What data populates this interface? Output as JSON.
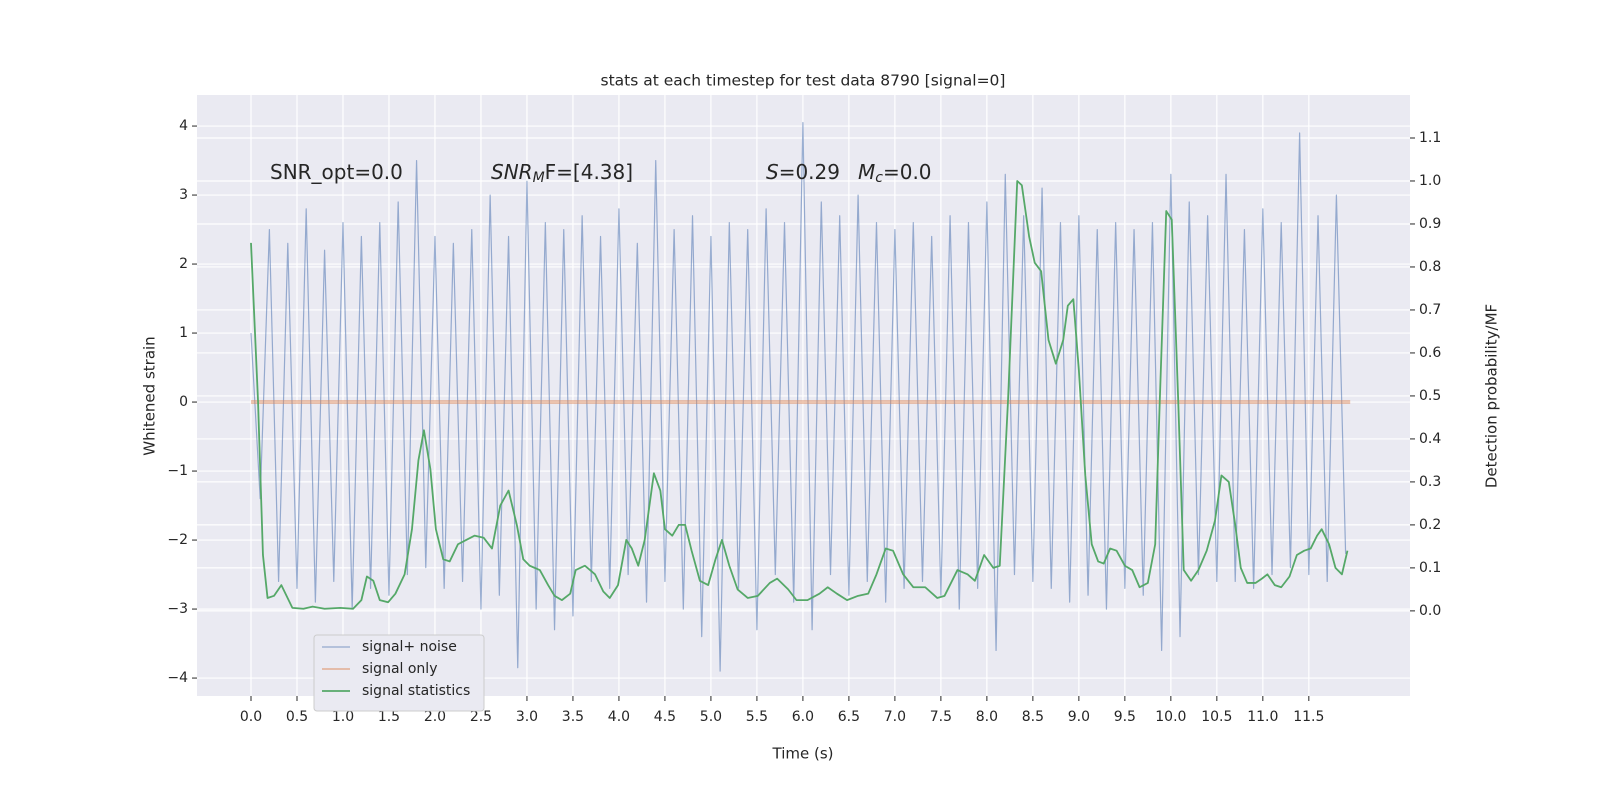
{
  "chart_data": {
    "type": "line",
    "title": "stats at each timestep for test data 8790 [signal=0]",
    "xlabel": "Time (s)",
    "ylabel": "Whitened strain",
    "y2label": "Detection probability/MF",
    "xlim": [
      -0.587,
      12.6
    ],
    "ylim": [
      -4.26,
      4.45
    ],
    "y2lim": [
      -0.198,
      1.2
    ],
    "xticks": [
      {
        "value": 0,
        "label": "0.0"
      },
      {
        "value": 0.5,
        "label": "0.5"
      },
      {
        "value": 1,
        "label": "1.0"
      },
      {
        "value": 1.5,
        "label": "1.5"
      },
      {
        "value": 2,
        "label": "2.0"
      },
      {
        "value": 2.5,
        "label": "2.5"
      },
      {
        "value": 3,
        "label": "3.0"
      },
      {
        "value": 3.5,
        "label": "3.5"
      },
      {
        "value": 4,
        "label": "4.0"
      },
      {
        "value": 4.5,
        "label": "4.5"
      },
      {
        "value": 5,
        "label": "5.0"
      },
      {
        "value": 5.5,
        "label": "5.5"
      },
      {
        "value": 6,
        "label": "6.0"
      },
      {
        "value": 6.5,
        "label": "6.5"
      },
      {
        "value": 7,
        "label": "7.0"
      },
      {
        "value": 7.5,
        "label": "7.5"
      },
      {
        "value": 8,
        "label": "8.0"
      },
      {
        "value": 8.5,
        "label": "8.5"
      },
      {
        "value": 9,
        "label": "9.0"
      },
      {
        "value": 9.5,
        "label": "9.5"
      },
      {
        "value": 10,
        "label": "10.0"
      },
      {
        "value": 10.5,
        "label": "10.5"
      },
      {
        "value": 11,
        "label": "11.0"
      },
      {
        "value": 11.5,
        "label": "11.5"
      }
    ],
    "yticks": [
      {
        "value": -4,
        "label": "−4"
      },
      {
        "value": -3,
        "label": "−3"
      },
      {
        "value": -2,
        "label": "−2"
      },
      {
        "value": -1,
        "label": "−1"
      },
      0,
      1,
      2,
      3,
      4
    ],
    "y2ticks": [
      {
        "value": 0,
        "label": "0.0"
      },
      {
        "value": 0.1,
        "label": "0.1"
      },
      {
        "value": 0.2,
        "label": "0.2"
      },
      {
        "value": 0.3,
        "label": "0.3"
      },
      {
        "value": 0.4,
        "label": "0.4"
      },
      {
        "value": 0.5,
        "label": "0.5"
      },
      {
        "value": 0.6,
        "label": "0.6"
      },
      {
        "value": 0.7,
        "label": "0.7"
      },
      {
        "value": 0.8,
        "label": "0.8"
      },
      {
        "value": 0.9,
        "label": "0.9"
      },
      {
        "value": 1.0,
        "label": "1.0"
      },
      {
        "value": 1.1,
        "label": "1.1"
      }
    ],
    "grid": true,
    "legend": "lower left",
    "annotations": [
      {
        "text": "SNR_opt=0.0"
      },
      {
        "italic": "SNR",
        "sub": "M",
        "text": "F=[4.38]"
      },
      {
        "italic": "S",
        "text": "=0.29"
      },
      {
        "italic": "M",
        "sub": "c",
        "text": "=0.0"
      }
    ],
    "series": [
      {
        "name": "signal+ noise",
        "color": "#4c72b0",
        "x": [
          0,
          0.1,
          0.2,
          0.3,
          0.4,
          0.5,
          0.6,
          0.7,
          0.8,
          0.9,
          1,
          1.1,
          1.2,
          1.3,
          1.4,
          1.5,
          1.6,
          1.7,
          1.8,
          1.9,
          2,
          2.1,
          2.2,
          2.3,
          2.4,
          2.5,
          2.6,
          2.7,
          2.8,
          2.9,
          3,
          3.1,
          3.2,
          3.3,
          3.4,
          3.5,
          3.6,
          3.7,
          3.8,
          3.9,
          4,
          4.1,
          4.2,
          4.3,
          4.4,
          4.5,
          4.6,
          4.7,
          4.8,
          4.9,
          5,
          5.1,
          5.2,
          5.3,
          5.4,
          5.5,
          5.6,
          5.7,
          5.8,
          5.9,
          6,
          6.1,
          6.2,
          6.3,
          6.4,
          6.5,
          6.6,
          6.7,
          6.8,
          6.9,
          7,
          7.1,
          7.2,
          7.3,
          7.4,
          7.5,
          7.6,
          7.7,
          7.8,
          7.9,
          8,
          8.1,
          8.2,
          8.3,
          8.4,
          8.5,
          8.6,
          8.7,
          8.8,
          8.9,
          9,
          9.1,
          9.2,
          9.3,
          9.4,
          9.5,
          9.6,
          9.7,
          9.8,
          9.9,
          10,
          10.1,
          10.2,
          10.3,
          10.4,
          10.5,
          10.6,
          10.7,
          10.8,
          10.9,
          11,
          11.1,
          11.2,
          11.3,
          11.4,
          11.5,
          11.6,
          11.7,
          11.8,
          11.9
        ],
        "values": [
          1.0,
          -1.4,
          2.5,
          -2.6,
          2.3,
          -2.7,
          2.8,
          -2.9,
          2.2,
          -2.6,
          2.6,
          -3.0,
          2.4,
          -2.7,
          2.6,
          -2.8,
          2.9,
          -2.5,
          3.5,
          -2.4,
          2.4,
          -2.7,
          2.3,
          -2.6,
          2.5,
          -3.0,
          3.0,
          -2.8,
          2.4,
          -3.85,
          3.2,
          -3.0,
          2.6,
          -3.3,
          2.5,
          -3.1,
          2.7,
          -2.6,
          2.4,
          -2.7,
          2.8,
          -2.5,
          2.3,
          -2.9,
          3.5,
          -2.6,
          2.5,
          -3.0,
          2.7,
          -3.4,
          2.4,
          -3.9,
          2.6,
          -2.7,
          2.5,
          -3.3,
          2.8,
          -2.5,
          2.6,
          -2.9,
          4.05,
          -3.3,
          2.9,
          -2.5,
          2.7,
          -2.8,
          3.0,
          -2.6,
          2.6,
          -2.9,
          2.5,
          -2.7,
          2.6,
          -2.6,
          2.4,
          -2.8,
          2.7,
          -3.0,
          2.6,
          -2.7,
          2.9,
          -3.6,
          3.3,
          -2.5,
          2.7,
          -2.6,
          3.1,
          -2.7,
          2.6,
          -2.9,
          2.7,
          -2.8,
          2.5,
          -3.0,
          2.6,
          -2.7,
          2.5,
          -2.8,
          2.6,
          -3.6,
          3.3,
          -3.4,
          2.9,
          -2.5,
          2.7,
          -2.6,
          3.3,
          -2.6,
          2.5,
          -2.7,
          2.8,
          -2.5,
          2.6,
          -2.4,
          3.9,
          -2.5,
          2.7,
          -2.6,
          3.0,
          -2.2
        ]
      },
      {
        "name": "signal only",
        "color": "#dd8452",
        "x": [
          0,
          11.95
        ],
        "values": [
          0,
          0
        ]
      },
      {
        "name": "signal statistics",
        "color": "#55a868",
        "axis": "y2",
        "x": [
          0,
          0.076,
          0.13,
          0.18,
          0.25,
          0.33,
          0.45,
          0.57,
          0.67,
          0.8,
          0.97,
          1.11,
          1.2,
          1.26,
          1.33,
          1.4,
          1.49,
          1.57,
          1.67,
          1.75,
          1.82,
          1.88,
          1.95,
          2.01,
          2.09,
          2.16,
          2.25,
          2.34,
          2.43,
          2.53,
          2.62,
          2.71,
          2.8,
          2.89,
          2.96,
          3.03,
          3.14,
          3.23,
          3.3,
          3.38,
          3.47,
          3.53,
          3.63,
          3.74,
          3.83,
          3.9,
          3.99,
          4.08,
          4.14,
          4.21,
          4.28,
          4.38,
          4.45,
          4.5,
          4.58,
          4.65,
          4.72,
          4.79,
          4.88,
          4.97,
          5.05,
          5.12,
          5.2,
          5.29,
          5.4,
          5.51,
          5.64,
          5.72,
          5.84,
          5.93,
          6.05,
          6.18,
          6.27,
          6.37,
          6.48,
          6.6,
          6.71,
          6.8,
          6.9,
          6.98,
          7.09,
          7.2,
          7.33,
          7.46,
          7.54,
          7.68,
          7.79,
          7.87,
          7.97,
          8.07,
          8.14,
          8.23,
          8.33,
          8.38,
          8.46,
          8.52,
          8.59,
          8.67,
          8.75,
          8.83,
          8.88,
          8.94,
          9.0,
          9.07,
          9.14,
          9.21,
          9.27,
          9.34,
          9.41,
          9.5,
          9.58,
          9.66,
          9.75,
          9.83,
          9.88,
          9.95,
          10.01,
          10.08,
          10.14,
          10.22,
          10.3,
          10.39,
          10.48,
          10.55,
          10.63,
          10.7,
          10.76,
          10.83,
          10.92,
          10.99,
          11.05,
          11.13,
          11.2,
          11.29,
          11.37,
          11.45,
          11.52,
          11.59,
          11.64,
          11.72,
          11.79,
          11.86,
          11.92
        ],
        "values": [
          0.856,
          0.49,
          0.13,
          0.03,
          0.035,
          0.06,
          0.007,
          0.005,
          0.01,
          0.005,
          0.007,
          0.005,
          0.025,
          0.08,
          0.07,
          0.025,
          0.02,
          0.04,
          0.085,
          0.19,
          0.35,
          0.42,
          0.33,
          0.19,
          0.12,
          0.115,
          0.155,
          0.165,
          0.175,
          0.17,
          0.145,
          0.245,
          0.28,
          0.2,
          0.12,
          0.105,
          0.095,
          0.06,
          0.035,
          0.025,
          0.04,
          0.095,
          0.105,
          0.085,
          0.045,
          0.03,
          0.06,
          0.165,
          0.145,
          0.105,
          0.165,
          0.32,
          0.28,
          0.19,
          0.175,
          0.2,
          0.2,
          0.14,
          0.07,
          0.06,
          0.12,
          0.165,
          0.105,
          0.05,
          0.03,
          0.035,
          0.065,
          0.075,
          0.05,
          0.025,
          0.025,
          0.04,
          0.055,
          0.04,
          0.025,
          0.035,
          0.04,
          0.085,
          0.145,
          0.14,
          0.085,
          0.055,
          0.055,
          0.03,
          0.035,
          0.095,
          0.085,
          0.07,
          0.13,
          0.1,
          0.105,
          0.49,
          1.0,
          0.99,
          0.87,
          0.81,
          0.79,
          0.63,
          0.575,
          0.63,
          0.71,
          0.725,
          0.56,
          0.315,
          0.155,
          0.115,
          0.11,
          0.145,
          0.14,
          0.105,
          0.095,
          0.055,
          0.065,
          0.155,
          0.49,
          0.93,
          0.91,
          0.49,
          0.095,
          0.07,
          0.095,
          0.14,
          0.21,
          0.315,
          0.3,
          0.2,
          0.1,
          0.065,
          0.065,
          0.075,
          0.085,
          0.06,
          0.055,
          0.08,
          0.13,
          0.14,
          0.145,
          0.175,
          0.19,
          0.155,
          0.1,
          0.085,
          0.14
        ]
      }
    ]
  }
}
